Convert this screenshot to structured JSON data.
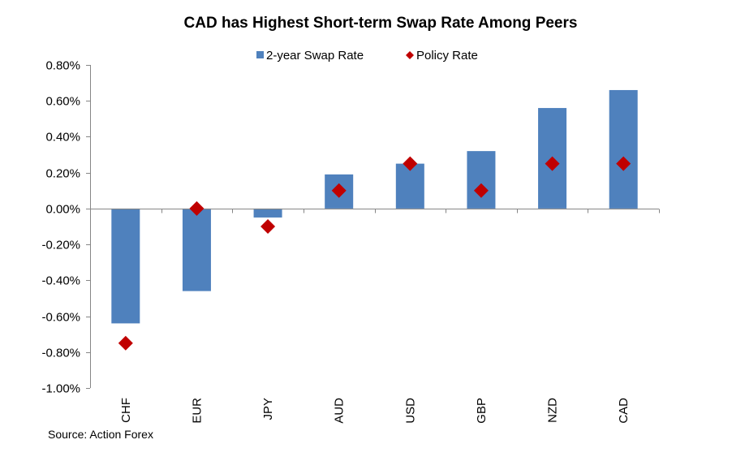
{
  "chart_data": {
    "type": "bar",
    "title": "CAD has Highest Short-term Swap Rate Among Peers",
    "xlabel": "",
    "ylabel": "",
    "categories": [
      "CHF",
      "EUR",
      "JPY",
      "AUD",
      "USD",
      "GBP",
      "NZD",
      "CAD"
    ],
    "series": [
      {
        "name": "2-year Swap Rate",
        "kind": "bar",
        "color": "#4F81BD",
        "values": [
          -0.64,
          -0.46,
          -0.05,
          0.19,
          0.25,
          0.32,
          0.56,
          0.66
        ]
      },
      {
        "name": "Policy Rate",
        "kind": "marker-diamond",
        "color": "#C00000",
        "values": [
          -0.75,
          0.0,
          -0.1,
          0.1,
          0.25,
          0.1,
          0.25,
          0.25
        ]
      }
    ],
    "ylim": [
      -1.0,
      0.8
    ],
    "yticks": [
      0.8,
      0.6,
      0.4,
      0.2,
      0.0,
      -0.2,
      -0.4,
      -0.6,
      -0.8,
      -1.0
    ],
    "ytick_labels": [
      "0.80%",
      "0.60%",
      "0.40%",
      "0.20%",
      "0.00%",
      "-0.20%",
      "-0.40%",
      "-0.60%",
      "-0.80%",
      "-1.00%"
    ],
    "y_unit": "%",
    "grid": false,
    "legend_position": "top-center",
    "source": "Source: Action Forex"
  }
}
